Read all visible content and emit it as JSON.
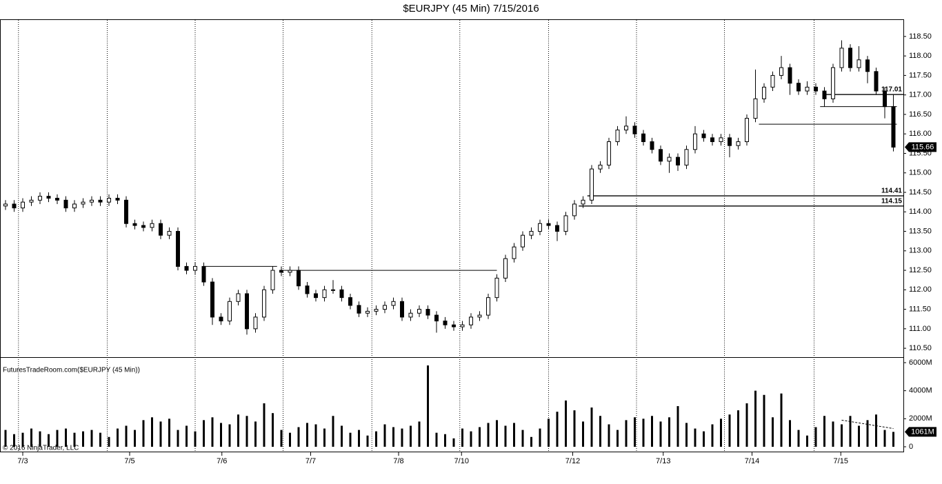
{
  "chart_data": {
    "type": "candlestick",
    "title": "$EURJPY (45 Min)  7/15/2016",
    "xlim": [
      -0.64,
      104.16
    ],
    "xticks": [
      {
        "value": 2,
        "label": "7/3"
      },
      {
        "value": 14.4,
        "label": "7/5"
      },
      {
        "value": 25.1,
        "label": "7/6"
      },
      {
        "value": 35.4,
        "label": "7/7"
      },
      {
        "value": 45.6,
        "label": "7/8"
      },
      {
        "value": 52.9,
        "label": "7/10"
      },
      {
        "value": 65.8,
        "label": "7/12"
      },
      {
        "value": 76.3,
        "label": "7/13"
      },
      {
        "value": 86.6,
        "label": "7/14"
      },
      {
        "value": 96.9,
        "label": "7/15"
      }
    ],
    "xgrid": [
      1.5,
      11.8,
      22,
      32.2,
      42.5,
      52.7,
      63,
      73.2,
      83.4,
      93.8
    ],
    "ylim": [
      110.29,
      118.94
    ],
    "yticks": [
      {
        "value": 110.5,
        "label": "110.50"
      },
      {
        "value": 111,
        "label": "111.00"
      },
      {
        "value": 111.5,
        "label": "111.50"
      },
      {
        "value": 112,
        "label": "112.00"
      },
      {
        "value": 112.5,
        "label": "112.50"
      },
      {
        "value": 113,
        "label": "113.00"
      },
      {
        "value": 113.5,
        "label": "113.50"
      },
      {
        "value": 114,
        "label": "114.00"
      },
      {
        "value": 114.5,
        "label": "114.50"
      },
      {
        "value": 115,
        "label": "115.00"
      },
      {
        "value": 115.5,
        "label": "115.50"
      },
      {
        "value": 116,
        "label": "116.00"
      },
      {
        "value": 116.5,
        "label": "116.50"
      },
      {
        "value": 117,
        "label": "117.00"
      },
      {
        "value": 117.5,
        "label": "117.50"
      },
      {
        "value": 118,
        "label": "118.00"
      },
      {
        "value": 118.5,
        "label": "118.50"
      }
    ],
    "color_up": "#ffffff",
    "color_down": "#000000",
    "open": [
      114.15,
      114.2,
      114.1,
      114.25,
      114.3,
      114.4,
      114.35,
      114.3,
      114.1,
      114.2,
      114.25,
      114.3,
      114.25,
      114.35,
      114.3,
      113.7,
      113.65,
      113.6,
      113.7,
      113.4,
      113.5,
      112.6,
      112.5,
      112.6,
      112.2,
      111.3,
      111.2,
      111.7,
      111.9,
      111.0,
      111.3,
      112.0,
      112.5,
      112.45,
      112.5,
      112.1,
      111.9,
      111.8,
      112.0,
      112.0,
      111.8,
      111.6,
      111.4,
      111.45,
      111.5,
      111.6,
      111.7,
      111.3,
      111.4,
      111.5,
      111.35,
      111.2,
      111.1,
      111.05,
      111.1,
      111.3,
      111.35,
      111.8,
      112.3,
      112.8,
      113.1,
      113.4,
      113.5,
      113.7,
      113.65,
      113.5,
      113.9,
      114.2,
      114.3,
      115.1,
      115.2,
      115.8,
      116.1,
      116.2,
      116.0,
      115.8,
      115.6,
      115.3,
      115.4,
      115.2,
      115.6,
      116.0,
      115.9,
      115.8,
      115.9,
      115.7,
      115.8,
      116.4,
      116.9,
      117.2,
      117.5,
      117.7,
      117.3,
      117.1,
      117.2,
      117.1,
      116.9,
      117.7,
      118.2,
      117.7,
      117.9,
      117.6,
      117.1,
      116.7
    ],
    "high": [
      114.3,
      114.3,
      114.35,
      114.4,
      114.5,
      114.5,
      114.45,
      114.4,
      114.3,
      114.35,
      114.4,
      114.4,
      114.45,
      114.45,
      114.4,
      113.8,
      113.75,
      113.8,
      113.8,
      113.6,
      113.6,
      112.7,
      112.7,
      112.7,
      112.3,
      111.4,
      111.8,
      112.0,
      112.0,
      111.4,
      112.1,
      112.6,
      112.6,
      112.6,
      112.6,
      112.2,
      112.0,
      112.1,
      112.25,
      112.1,
      111.9,
      111.7,
      111.55,
      111.6,
      111.7,
      111.8,
      111.8,
      111.5,
      111.6,
      111.6,
      111.45,
      111.3,
      111.2,
      111.2,
      111.4,
      111.45,
      111.9,
      112.4,
      112.9,
      113.2,
      113.5,
      113.6,
      113.8,
      113.8,
      113.75,
      114.0,
      114.3,
      114.4,
      115.2,
      115.3,
      115.9,
      116.2,
      116.45,
      116.3,
      116.1,
      115.9,
      115.7,
      115.5,
      115.5,
      115.7,
      116.2,
      116.1,
      116.0,
      116.0,
      116.0,
      115.9,
      116.5,
      117.65,
      117.3,
      117.6,
      118.0,
      117.8,
      117.4,
      117.35,
      117.3,
      117.2,
      117.8,
      118.4,
      118.3,
      118.25,
      118.0,
      117.7,
      117.2,
      117.0
    ],
    "low": [
      114.05,
      114.0,
      114.0,
      114.15,
      114.2,
      114.25,
      114.2,
      114.0,
      114.0,
      114.1,
      114.15,
      114.15,
      114.15,
      114.2,
      113.6,
      113.55,
      113.5,
      113.5,
      113.3,
      113.3,
      112.5,
      112.4,
      112.4,
      112.1,
      111.1,
      111.1,
      111.1,
      111.6,
      110.85,
      110.9,
      111.2,
      111.9,
      112.35,
      112.35,
      112.0,
      111.8,
      111.7,
      111.7,
      111.9,
      111.7,
      111.5,
      111.3,
      111.3,
      111.35,
      111.4,
      111.5,
      111.2,
      111.2,
      111.3,
      111.25,
      110.9,
      111.0,
      110.95,
      110.95,
      111.0,
      111.2,
      111.25,
      111.7,
      112.2,
      112.7,
      113.0,
      113.3,
      113.4,
      113.55,
      113.25,
      113.4,
      113.8,
      114.1,
      114.2,
      115.0,
      115.1,
      115.7,
      116.0,
      115.9,
      115.7,
      115.5,
      115.2,
      115.0,
      115.05,
      115.1,
      115.5,
      115.8,
      115.7,
      115.7,
      115.4,
      115.6,
      115.7,
      116.3,
      116.8,
      117.1,
      117.4,
      117.0,
      117.0,
      117.0,
      117.0,
      116.7,
      116.8,
      117.6,
      117.6,
      117.6,
      117.3,
      117.0,
      116.4,
      115.55
    ],
    "close": [
      114.2,
      114.1,
      114.25,
      114.3,
      114.4,
      114.35,
      114.3,
      114.1,
      114.2,
      114.25,
      114.3,
      114.25,
      114.35,
      114.3,
      113.7,
      113.65,
      113.6,
      113.7,
      113.4,
      113.5,
      112.6,
      112.5,
      112.6,
      112.2,
      111.3,
      111.2,
      111.7,
      111.9,
      111.0,
      111.3,
      112.0,
      112.5,
      112.45,
      112.5,
      112.1,
      111.9,
      111.8,
      112.0,
      112.0,
      111.8,
      111.6,
      111.4,
      111.45,
      111.5,
      111.6,
      111.7,
      111.3,
      111.4,
      111.5,
      111.35,
      111.2,
      111.1,
      111.05,
      111.1,
      111.3,
      111.35,
      111.8,
      112.3,
      112.8,
      113.1,
      113.4,
      113.5,
      113.7,
      113.65,
      113.5,
      113.9,
      114.2,
      114.3,
      115.1,
      115.2,
      115.8,
      116.1,
      116.2,
      116.0,
      115.8,
      115.6,
      115.3,
      115.4,
      115.2,
      115.6,
      116.0,
      115.9,
      115.8,
      115.9,
      115.7,
      115.8,
      116.4,
      116.9,
      117.2,
      117.5,
      117.7,
      117.3,
      117.1,
      117.2,
      117.1,
      116.9,
      117.7,
      118.2,
      117.7,
      117.9,
      117.6,
      117.1,
      116.7,
      115.66
    ],
    "last_label": "115.66",
    "lines": [
      {
        "value": 112.6,
        "x": [
          23,
          31.5
        ]
      },
      {
        "value": 112.5,
        "x": [
          32,
          57
        ]
      },
      {
        "value": 114.41,
        "label": "114.41",
        "x": [
          67.5,
          104.16
        ]
      },
      {
        "value": 114.15,
        "label": "114.15",
        "x": [
          66.5,
          104.16
        ]
      },
      {
        "value": 116.25,
        "x": [
          87.4,
          103.4
        ]
      },
      {
        "value": 117.01,
        "label": "117.01",
        "x": [
          95.1,
          104.16
        ]
      },
      {
        "value": 116.7,
        "x": [
          94.5,
          103.4
        ]
      }
    ],
    "volume": {
      "type": "bar",
      "label": "FuturesTradeRoom.com($EURJPY (45 Min))",
      "color": "#000000",
      "ylim": [
        -344,
        6344
      ],
      "yticks": [
        {
          "value": 0,
          "label": "0"
        },
        {
          "value": 2000,
          "label": "2000M"
        },
        {
          "value": 4000,
          "label": "4000M"
        },
        {
          "value": 6000,
          "label": "6000M"
        }
      ],
      "values": [
        1200,
        900,
        1000,
        1300,
        1100,
        900,
        1200,
        1300,
        1000,
        1100,
        1200,
        1000,
        700,
        1300,
        1500,
        1200,
        1900,
        2100,
        1800,
        2000,
        1200,
        1500,
        1100,
        1900,
        2100,
        1700,
        1600,
        2300,
        2200,
        1800,
        3100,
        2400,
        1200,
        1000,
        1400,
        1700,
        1600,
        1300,
        2200,
        1500,
        1000,
        1200,
        800,
        1100,
        1600,
        1400,
        1300,
        1500,
        1800,
        5800,
        1000,
        900,
        600,
        1300,
        1100,
        1400,
        1700,
        1900,
        1500,
        1700,
        1200,
        700,
        1300,
        2000,
        2500,
        3300,
        2600,
        1800,
        2800,
        2200,
        1600,
        1200,
        1900,
        2100,
        2000,
        2200,
        1800,
        2100,
        2900,
        1700,
        1300,
        1100,
        1600,
        2000,
        2300,
        2600,
        3100,
        4000,
        3700,
        2100,
        3800,
        1900,
        1200,
        800,
        1400,
        2200,
        1800,
        1600,
        2200,
        1500,
        1900,
        2300,
        1200,
        1061
      ],
      "last_label": "1061M",
      "trendline": {
        "x": [
          97,
          103
        ],
        "values": [
          1900,
          1300
        ]
      }
    },
    "watermark": "© 2016 NinjaTrader, LLC"
  }
}
